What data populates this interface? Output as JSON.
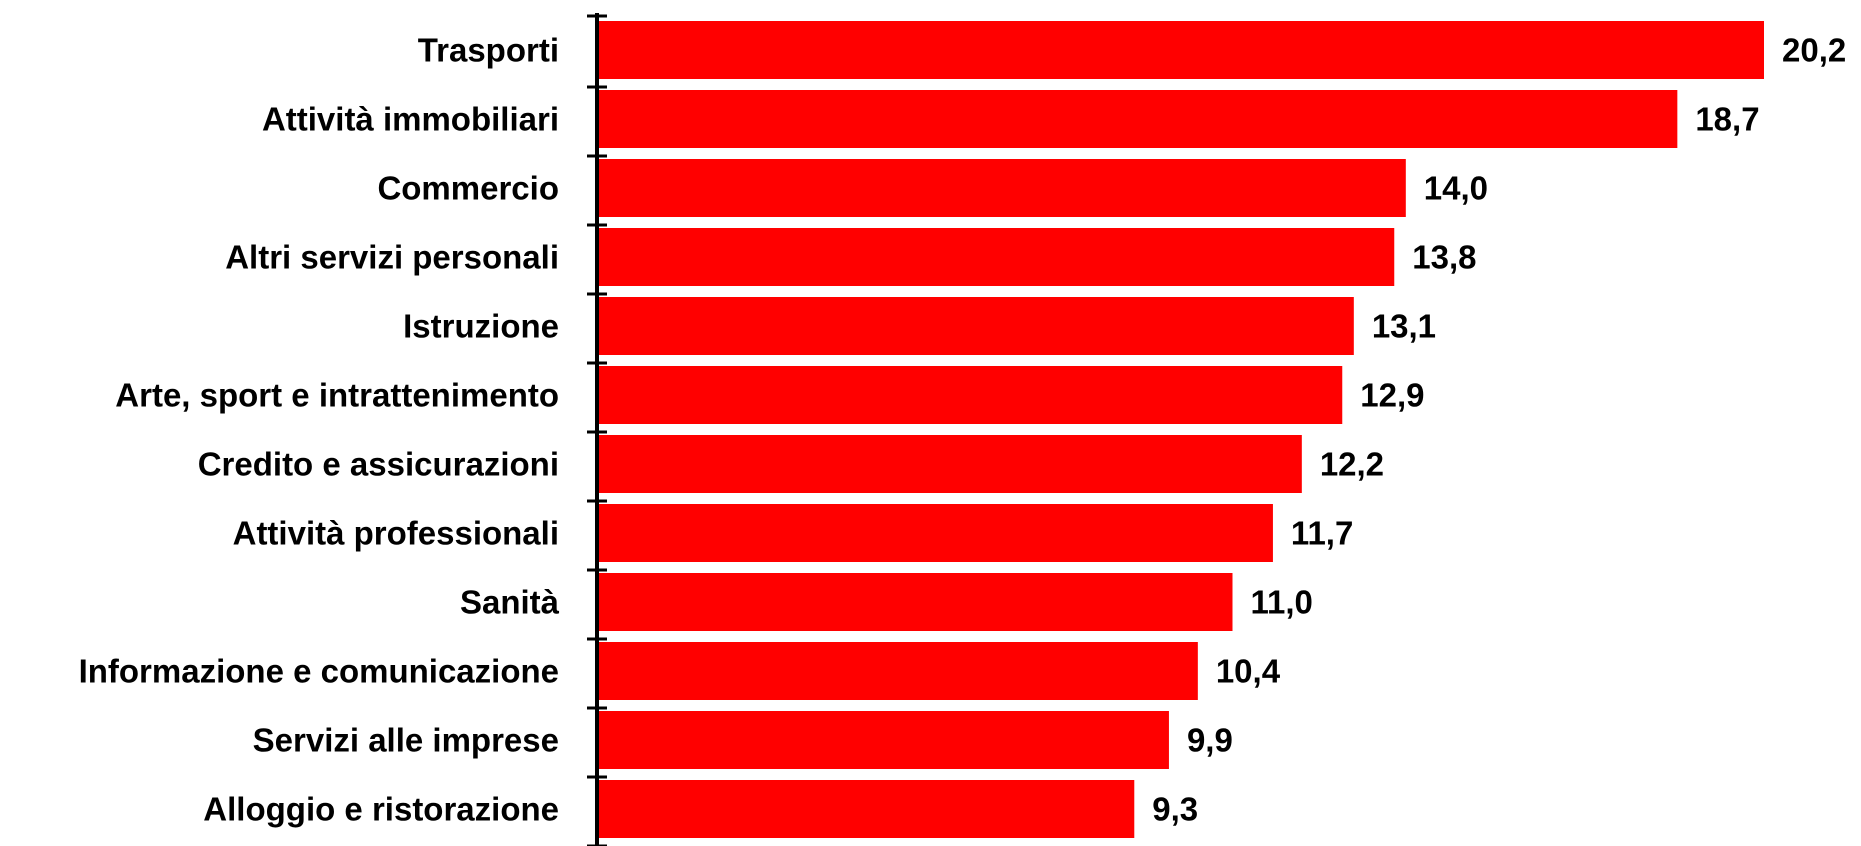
{
  "chart_data": {
    "type": "bar",
    "orientation": "horizontal",
    "categories": [
      "Trasporti",
      "Attività immobiliari",
      "Commercio",
      "Altri servizi personali",
      "Istruzione",
      "Arte, sport e intrattenimento",
      "Credito e assicurazioni",
      "Attività professionali",
      "Sanità",
      "Informazione e comunicazione",
      "Servizi alle imprese",
      "Alloggio e ristorazione"
    ],
    "values": [
      20.2,
      18.7,
      14.0,
      13.8,
      13.1,
      12.9,
      12.2,
      11.7,
      11.0,
      10.4,
      9.9,
      9.3
    ],
    "value_labels": [
      "20,2",
      "18,7",
      "14,0",
      "13,8",
      "13,1",
      "12,9",
      "12,2",
      "11,7",
      "11,0",
      "10,4",
      "9,9",
      "9,3"
    ],
    "xlim": [
      0,
      20.2
    ],
    "data_labels": true,
    "grid": false,
    "legend": "none",
    "bar_color": "#ff0000",
    "axis_color": "#000000",
    "text_color": "#000000"
  }
}
